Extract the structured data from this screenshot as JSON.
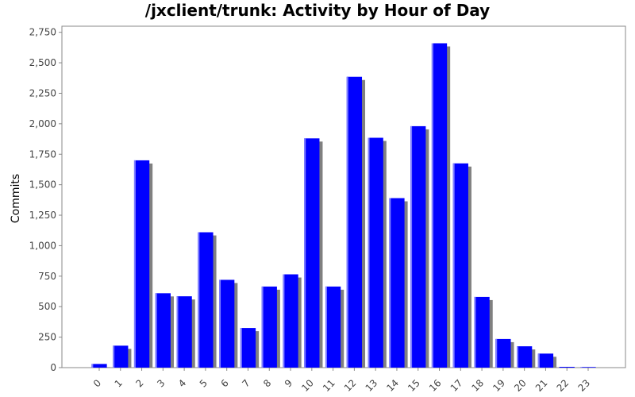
{
  "chart_data": {
    "type": "bar",
    "title": "/jxclient/trunk: Activity by Hour of Day",
    "xlabel": "",
    "ylabel": "Commits",
    "categories": [
      "0",
      "1",
      "2",
      "3",
      "4",
      "5",
      "6",
      "7",
      "8",
      "9",
      "10",
      "11",
      "12",
      "13",
      "14",
      "15",
      "16",
      "17",
      "18",
      "19",
      "20",
      "21",
      "22",
      "23"
    ],
    "values": [
      30,
      180,
      1700,
      610,
      585,
      1110,
      720,
      325,
      665,
      765,
      1880,
      665,
      2385,
      1885,
      1390,
      1980,
      2660,
      1675,
      580,
      235,
      175,
      115,
      0,
      5
    ],
    "ylim": [
      0,
      2800
    ],
    "yticks": [
      0,
      250,
      500,
      750,
      1000,
      1250,
      1500,
      1750,
      2000,
      2250,
      2500,
      2750
    ],
    "ytick_labels": [
      "0",
      "250",
      "500",
      "750",
      "1,000",
      "1,250",
      "1,500",
      "1,750",
      "2,000",
      "2,250",
      "2,500",
      "2,750"
    ],
    "grid": false,
    "legend": "none",
    "colors": {
      "bar": "#0000ff",
      "bar_highlight": "#8080ff",
      "shadow": "#808080",
      "axis": "#888888"
    }
  }
}
